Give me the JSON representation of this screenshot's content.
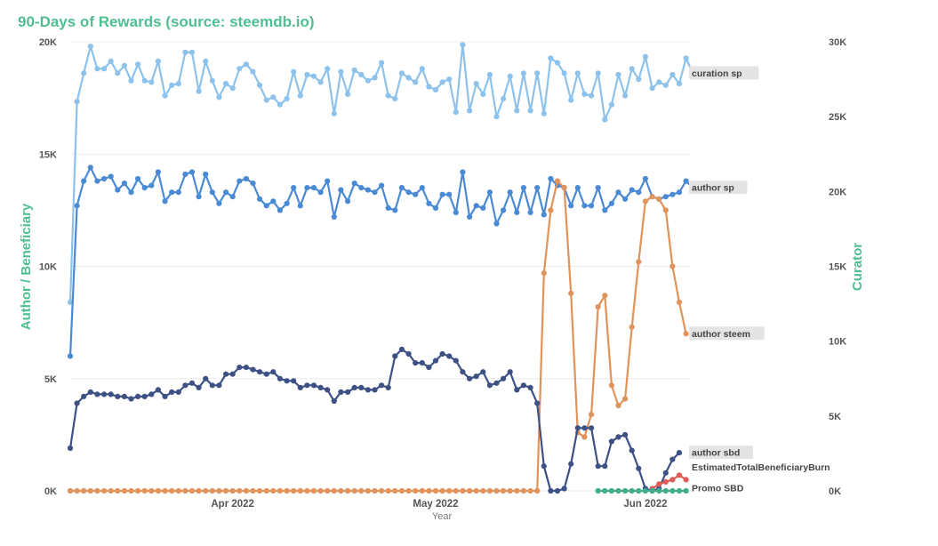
{
  "chart_data": {
    "type": "line",
    "title": "90-Days of Rewards (source: steemdb.io)",
    "xlabel": "Year",
    "ylabel_left": "Author / Beneficiary",
    "ylabel_right": "Curator",
    "ylim_left": [
      0,
      20000
    ],
    "ylim_right": [
      0,
      30000
    ],
    "y_ticks_left": [
      "0K",
      "5K",
      "10K",
      "15K",
      "20K"
    ],
    "y_ticks_right": [
      "0K",
      "5K",
      "10K",
      "15K",
      "20K",
      "25K",
      "30K"
    ],
    "x_ticks": [
      "Apr 2022",
      "May 2022",
      "Jun 2022"
    ],
    "x_range": [
      "2022-03-08",
      "2022-06-05"
    ],
    "x_tick_day_index": [
      24,
      54,
      85
    ],
    "series": [
      {
        "name": "curation sp",
        "axis": "right",
        "color": "#8cc2ec",
        "start_day": 0,
        "values": [
          12600,
          26000,
          27900,
          29700,
          28200,
          28200,
          28700,
          27900,
          28400,
          27400,
          28500,
          27400,
          27300,
          28700,
          26400,
          27100,
          27200,
          29300,
          29300,
          26700,
          28700,
          27400,
          26300,
          27200,
          26900,
          28200,
          28500,
          28000,
          27100,
          26100,
          26300,
          25800,
          26200,
          28000,
          26400,
          27800,
          27700,
          27300,
          28200,
          25200,
          28000,
          26500,
          28100,
          27800,
          27400,
          27600,
          28600,
          26400,
          26200,
          27900,
          27600,
          27300,
          28200,
          27000,
          26800,
          27300,
          27500,
          25300,
          29800,
          25400,
          27200,
          26500,
          27800,
          25000,
          26200,
          27700,
          25400,
          27900,
          25400,
          27900,
          25200,
          28900,
          28600,
          27900,
          26100,
          27900,
          26500,
          26400,
          27900,
          24800,
          25800,
          27800,
          26400,
          28200,
          27500,
          29000,
          26900,
          27300,
          27100,
          27800,
          27200,
          28900,
          27900
        ]
      },
      {
        "name": "author sp",
        "axis": "left",
        "color": "#4a8ad5",
        "start_day": 0,
        "values": [
          6000,
          12700,
          13800,
          14400,
          13800,
          13900,
          14000,
          13400,
          13700,
          13300,
          13900,
          13500,
          13600,
          14200,
          12900,
          13300,
          13300,
          14100,
          14200,
          13100,
          14100,
          13300,
          12800,
          13300,
          13100,
          13800,
          13900,
          13700,
          13000,
          12700,
          12900,
          12500,
          12800,
          13500,
          12700,
          13500,
          13500,
          13300,
          13800,
          12200,
          13400,
          12900,
          13700,
          13500,
          13400,
          13300,
          13600,
          12600,
          12500,
          13500,
          13300,
          13200,
          13500,
          12800,
          12600,
          13200,
          13200,
          12400,
          14200,
          12200,
          12700,
          12600,
          13300,
          11900,
          12500,
          13300,
          12400,
          13500,
          12400,
          13500,
          12300,
          13900,
          13600,
          13500,
          12700,
          13500,
          12700,
          12700,
          13500,
          12500,
          12800,
          13300,
          13000,
          13400,
          13300,
          13900,
          13100,
          13000,
          13100,
          13200,
          13300,
          13800,
          13500
        ]
      },
      {
        "name": "author steem",
        "axis": "left",
        "color": "#e0935a",
        "start_day": 0,
        "values": [
          0,
          0,
          0,
          0,
          0,
          0,
          0,
          0,
          0,
          0,
          0,
          0,
          0,
          0,
          0,
          0,
          0,
          0,
          0,
          0,
          0,
          0,
          0,
          0,
          0,
          0,
          0,
          0,
          0,
          0,
          0,
          0,
          0,
          0,
          0,
          0,
          0,
          0,
          0,
          0,
          0,
          0,
          0,
          0,
          0,
          0,
          0,
          0,
          0,
          0,
          0,
          0,
          0,
          0,
          0,
          0,
          0,
          0,
          0,
          0,
          0,
          0,
          0,
          0,
          0,
          0,
          0,
          0,
          0,
          0,
          9700,
          12500,
          13800,
          13500,
          8800,
          2600,
          2400,
          3400,
          8200,
          8700,
          4700,
          3800,
          4100,
          7300,
          10200,
          12900,
          13100,
          13000,
          12500,
          10000,
          8400,
          7000
        ]
      },
      {
        "name": "author sbd",
        "axis": "left",
        "color": "#3d5185",
        "start_day": 0,
        "values": [
          1900,
          3900,
          4200,
          4400,
          4300,
          4300,
          4300,
          4200,
          4200,
          4100,
          4200,
          4200,
          4300,
          4500,
          4200,
          4400,
          4400,
          4700,
          4800,
          4600,
          5000,
          4700,
          4700,
          5200,
          5200,
          5500,
          5500,
          5400,
          5300,
          5200,
          5300,
          5000,
          4900,
          4900,
          4600,
          4700,
          4700,
          4600,
          4500,
          4000,
          4400,
          4400,
          4600,
          4600,
          4500,
          4500,
          4700,
          4600,
          6000,
          6300,
          6100,
          5700,
          5700,
          5500,
          5800,
          6100,
          6000,
          5800,
          5300,
          5000,
          5100,
          5300,
          4700,
          4800,
          5000,
          5300,
          4500,
          4700,
          4600,
          3900,
          1100,
          0,
          0,
          100,
          1200,
          2800,
          2800,
          2800,
          1100,
          1100,
          2200,
          2400,
          2500,
          1800,
          1000,
          100,
          0,
          100,
          800,
          1400,
          1700
        ]
      },
      {
        "name": "EstimatedTotalBeneficiaryBurn",
        "axis": "left",
        "color": "#e05c57",
        "start_day": 86,
        "values": [
          100,
          300,
          400,
          500,
          700,
          500
        ]
      },
      {
        "name": "Promo SBD",
        "axis": "left",
        "color": "#3fae8d",
        "start_day": 78,
        "values": [
          0,
          0,
          0,
          0,
          0,
          0,
          0,
          0,
          0,
          0,
          0,
          0,
          0,
          0
        ]
      }
    ]
  }
}
